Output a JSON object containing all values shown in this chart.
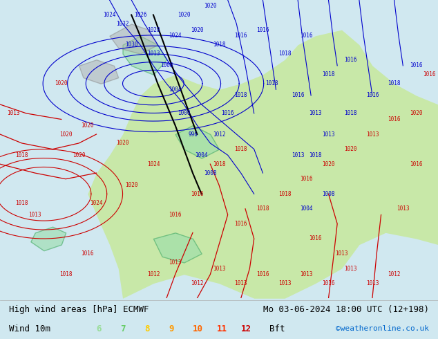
{
  "title_left": "High wind areas [hPa] ECMWF",
  "title_right": "Mo 03-06-2024 18:00 UTC (12+198)",
  "subtitle_left": "Wind 10m",
  "bft_label": "Bft",
  "bft_values": [
    "6",
    "7",
    "8",
    "9",
    "10",
    "11",
    "12"
  ],
  "bft_colors": [
    "#99dd99",
    "#66cc66",
    "#ffcc00",
    "#ff9900",
    "#ff6600",
    "#ff3300",
    "#cc0000"
  ],
  "copyright": "©weatheronline.co.uk",
  "copyright_color": "#0066cc",
  "bg_color": "#e8f4e8",
  "map_bg": "#c8e8c8",
  "sea_color": "#d0e8f0",
  "label_color": "#cc0000",
  "blue_line_color": "#0000cc",
  "black_line_color": "#000000",
  "figsize": [
    6.34,
    4.9
  ],
  "dpi": 100
}
